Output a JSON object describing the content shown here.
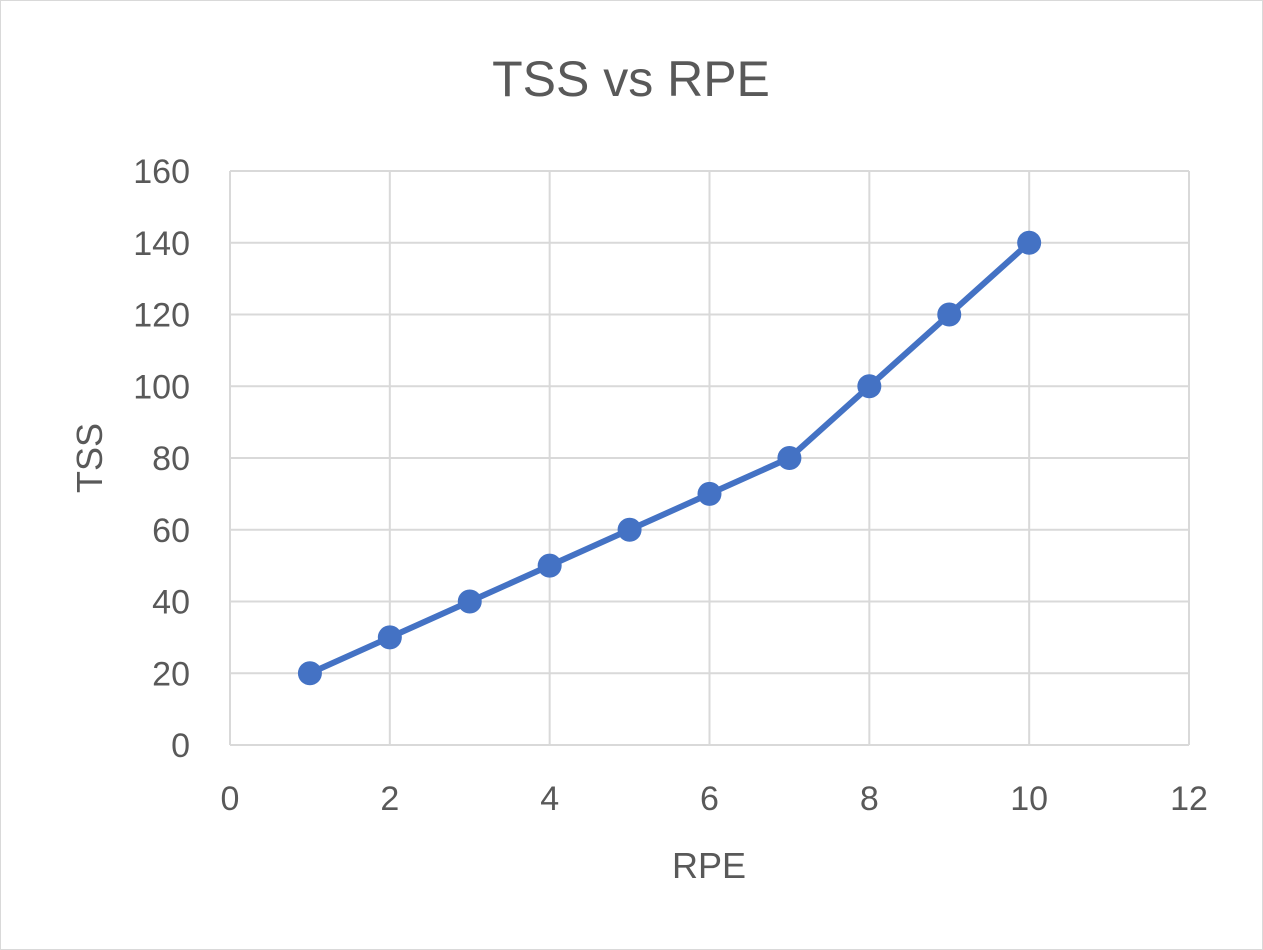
{
  "chart_data": {
    "type": "scatter",
    "title": "TSS vs RPE",
    "xlabel": "RPE",
    "ylabel": "TSS",
    "xlim": [
      0,
      12
    ],
    "ylim": [
      0,
      160
    ],
    "x_ticks": [
      0,
      2,
      4,
      6,
      8,
      10,
      12
    ],
    "y_ticks": [
      0,
      20,
      40,
      60,
      80,
      100,
      120,
      140,
      160
    ],
    "grid": true,
    "legend": false,
    "series": [
      {
        "color": "#4472c4",
        "marker": "circle",
        "line": "straight",
        "x": [
          1,
          2,
          3,
          4,
          5,
          6,
          7,
          8,
          9,
          10
        ],
        "y": [
          20,
          30,
          40,
          50,
          60,
          70,
          80,
          100,
          120,
          140
        ]
      }
    ]
  }
}
